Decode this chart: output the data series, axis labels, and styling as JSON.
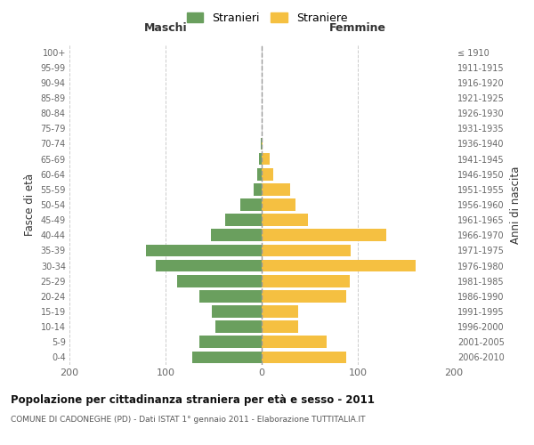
{
  "age_groups": [
    "0-4",
    "5-9",
    "10-14",
    "15-19",
    "20-24",
    "25-29",
    "30-34",
    "35-39",
    "40-44",
    "45-49",
    "50-54",
    "55-59",
    "60-64",
    "65-69",
    "70-74",
    "75-79",
    "80-84",
    "85-89",
    "90-94",
    "95-99",
    "100+"
  ],
  "birth_years": [
    "2006-2010",
    "2001-2005",
    "1996-2000",
    "1991-1995",
    "1986-1990",
    "1981-1985",
    "1976-1980",
    "1971-1975",
    "1966-1970",
    "1961-1965",
    "1956-1960",
    "1951-1955",
    "1946-1950",
    "1941-1945",
    "1936-1940",
    "1931-1935",
    "1926-1930",
    "1921-1925",
    "1916-1920",
    "1911-1915",
    "≤ 1910"
  ],
  "maschi": [
    72,
    65,
    48,
    52,
    65,
    88,
    110,
    120,
    53,
    38,
    22,
    8,
    5,
    3,
    1,
    0,
    0,
    0,
    0,
    0,
    0
  ],
  "femmine": [
    88,
    68,
    38,
    38,
    88,
    92,
    160,
    93,
    130,
    48,
    35,
    30,
    12,
    8,
    1,
    0,
    0,
    0,
    0,
    0,
    0
  ],
  "color_maschi": "#6a9f5e",
  "color_femmine": "#f5c041",
  "grid_color": "#cccccc",
  "title": "Popolazione per cittadinanza straniera per età e sesso - 2011",
  "subtitle": "COMUNE DI CADONEGHE (PD) - Dati ISTAT 1° gennaio 2011 - Elaborazione TUTTITALIA.IT",
  "xlabel_left": "Maschi",
  "xlabel_right": "Femmine",
  "ylabel_left": "Fasce di età",
  "ylabel_right": "Anni di nascita",
  "legend_maschi": "Stranieri",
  "legend_femmine": "Straniere",
  "xlim": 200,
  "bar_height": 0.8
}
